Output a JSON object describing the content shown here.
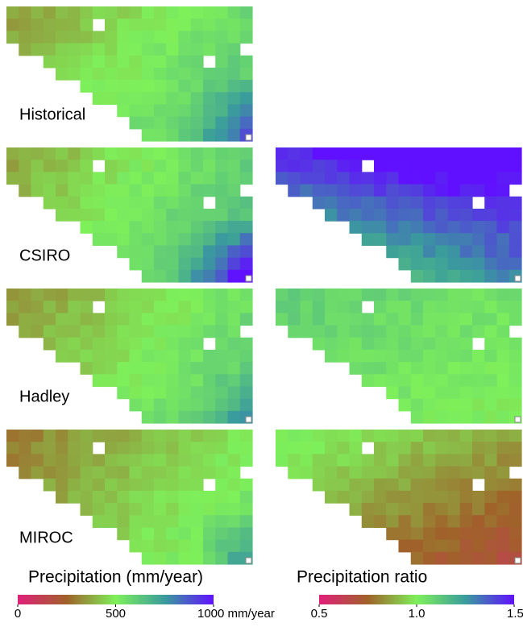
{
  "panels": [
    {
      "label": "Historical"
    },
    {
      "label": "CSIRO"
    },
    {
      "label": "Hadley"
    },
    {
      "label": "MIROC"
    }
  ],
  "colorbars": [
    {
      "title": "Precipitation (mm/year)",
      "lim": [
        0,
        1000
      ],
      "ticks": [
        0,
        500,
        {
          "value": 1000,
          "label": "1000 mm/year"
        }
      ],
      "colors": [
        "#e0207a",
        "#a0622a",
        "#7ef05a",
        "#3a9c9c",
        "#6010ff"
      ]
    },
    {
      "title": "Precipitation ratio",
      "lim": [
        0.5,
        1.5
      ],
      "ticks": [
        0.5,
        {
          "value": 1.0,
          "label": "1.0"
        },
        1.5
      ],
      "colors": [
        "#e0207a",
        "#a0622a",
        "#7ef05a",
        "#3a9c9c",
        "#6010ff"
      ]
    }
  ]
}
